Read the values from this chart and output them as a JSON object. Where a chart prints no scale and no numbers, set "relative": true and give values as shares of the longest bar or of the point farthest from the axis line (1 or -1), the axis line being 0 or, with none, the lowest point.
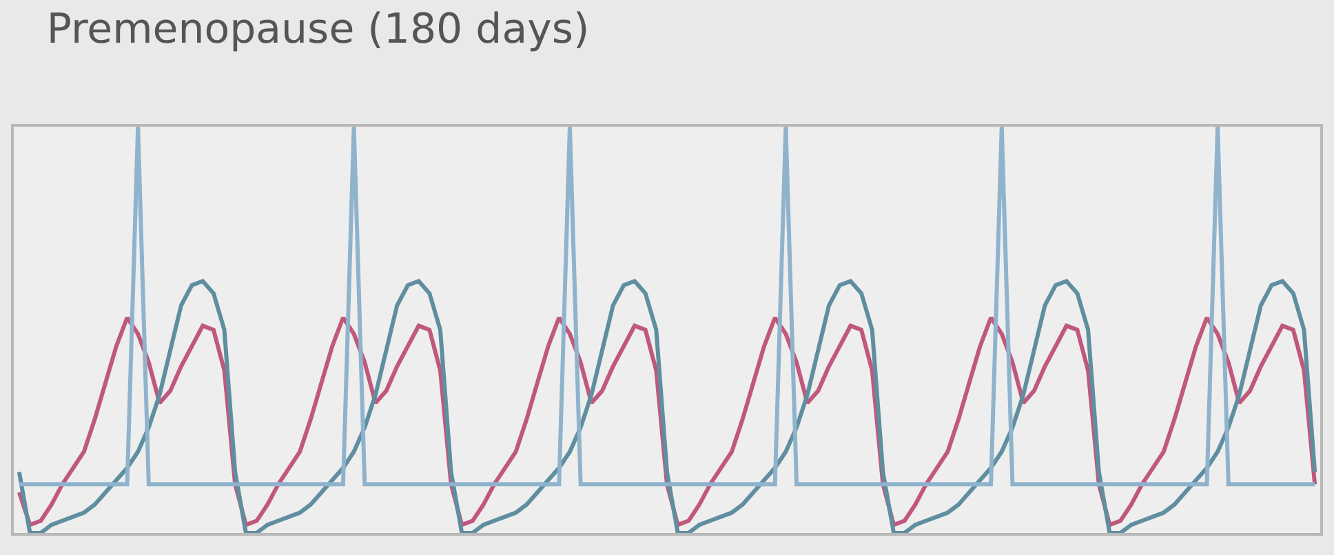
{
  "chart_data": {
    "type": "line",
    "title": "Premenopause (180 days)",
    "relative": true,
    "grid": false,
    "marker": "none",
    "line_style": "solid",
    "categories": [
      null,
      null,
      null,
      null,
      null,
      null,
      null,
      null,
      null,
      null,
      null,
      null,
      null,
      null,
      null,
      null,
      null,
      null,
      null,
      null,
      null,
      null,
      null,
      null,
      null,
      null,
      null,
      null,
      null,
      null,
      null,
      null,
      null,
      null,
      null,
      null,
      null,
      null,
      null,
      null,
      null,
      null,
      null,
      null,
      null,
      null,
      null,
      null,
      null,
      null,
      null,
      null,
      null,
      null,
      null,
      null,
      null,
      null,
      null,
      null,
      null,
      null,
      null,
      null,
      null,
      null,
      null,
      null,
      null,
      null,
      null,
      null,
      null,
      null,
      null,
      null,
      null,
      null,
      null,
      null,
      null,
      null,
      null,
      null,
      null,
      null,
      null,
      null,
      null,
      null,
      null,
      null,
      null,
      null,
      null,
      null,
      null,
      null,
      null,
      null,
      null,
      null,
      null,
      null,
      null,
      null,
      null,
      null,
      null,
      null,
      null,
      null,
      null,
      null,
      null,
      null,
      null,
      null,
      null,
      null,
      null
    ],
    "series": [
      {
        "color": "#c0587e",
        "values": [
          0.1,
          0.02,
          0.03,
          0.07,
          0.12,
          0.16,
          0.2,
          0.28,
          0.37,
          0.46,
          0.53,
          0.49,
          0.42,
          0.32,
          0.35,
          0.41,
          0.46,
          0.51,
          0.5,
          0.4,
          0.12,
          0.02,
          0.03,
          0.07,
          0.12,
          0.16,
          0.2,
          0.28,
          0.37,
          0.46,
          0.53,
          0.49,
          0.42,
          0.32,
          0.35,
          0.41,
          0.46,
          0.51,
          0.5,
          0.4,
          0.12,
          0.02,
          0.03,
          0.07,
          0.12,
          0.16,
          0.2,
          0.28,
          0.37,
          0.46,
          0.53,
          0.49,
          0.42,
          0.32,
          0.35,
          0.41,
          0.46,
          0.51,
          0.5,
          0.4,
          0.12,
          0.02,
          0.03,
          0.07,
          0.12,
          0.16,
          0.2,
          0.28,
          0.37,
          0.46,
          0.53,
          0.49,
          0.42,
          0.32,
          0.35,
          0.41,
          0.46,
          0.51,
          0.5,
          0.4,
          0.12,
          0.02,
          0.03,
          0.07,
          0.12,
          0.16,
          0.2,
          0.28,
          0.37,
          0.46,
          0.53,
          0.49,
          0.42,
          0.32,
          0.35,
          0.41,
          0.46,
          0.51,
          0.5,
          0.4,
          0.12,
          0.02,
          0.03,
          0.07,
          0.12,
          0.16,
          0.2,
          0.28,
          0.37,
          0.46,
          0.53,
          0.49,
          0.42,
          0.32,
          0.35,
          0.41,
          0.46,
          0.51,
          0.5,
          0.4,
          0.12
        ]
      },
      {
        "color": "#5f8ea0",
        "values": [
          0.15,
          0,
          0,
          0.02,
          0.03,
          0.04,
          0.05,
          0.07,
          0.1,
          0.13,
          0.16,
          0.2,
          0.26,
          0.34,
          0.45,
          0.56,
          0.61,
          0.62,
          0.59,
          0.5,
          0.15,
          0,
          0,
          0.02,
          0.03,
          0.04,
          0.05,
          0.07,
          0.1,
          0.13,
          0.16,
          0.2,
          0.26,
          0.34,
          0.45,
          0.56,
          0.61,
          0.62,
          0.59,
          0.5,
          0.15,
          0,
          0,
          0.02,
          0.03,
          0.04,
          0.05,
          0.07,
          0.1,
          0.13,
          0.16,
          0.2,
          0.26,
          0.34,
          0.45,
          0.56,
          0.61,
          0.62,
          0.59,
          0.5,
          0.15,
          0,
          0,
          0.02,
          0.03,
          0.04,
          0.05,
          0.07,
          0.1,
          0.13,
          0.16,
          0.2,
          0.26,
          0.34,
          0.45,
          0.56,
          0.61,
          0.62,
          0.59,
          0.5,
          0.15,
          0,
          0,
          0.02,
          0.03,
          0.04,
          0.05,
          0.07,
          0.1,
          0.13,
          0.16,
          0.2,
          0.26,
          0.34,
          0.45,
          0.56,
          0.61,
          0.62,
          0.59,
          0.5,
          0.15,
          0,
          0,
          0.02,
          0.03,
          0.04,
          0.05,
          0.07,
          0.1,
          0.13,
          0.16,
          0.2,
          0.26,
          0.34,
          0.45,
          0.56,
          0.61,
          0.62,
          0.59,
          0.5,
          0.15
        ]
      },
      {
        "color": "#8fb3cc",
        "values": [
          0.12,
          0.12,
          0.12,
          0.12,
          0.12,
          0.12,
          0.12,
          0.12,
          0.12,
          0.12,
          0.12,
          1,
          0.12,
          0.12,
          0.12,
          0.12,
          0.12,
          0.12,
          0.12,
          0.12,
          0.12,
          0.12,
          0.12,
          0.12,
          0.12,
          0.12,
          0.12,
          0.12,
          0.12,
          0.12,
          0.12,
          1,
          0.12,
          0.12,
          0.12,
          0.12,
          0.12,
          0.12,
          0.12,
          0.12,
          0.12,
          0.12,
          0.12,
          0.12,
          0.12,
          0.12,
          0.12,
          0.12,
          0.12,
          0.12,
          0.12,
          1,
          0.12,
          0.12,
          0.12,
          0.12,
          0.12,
          0.12,
          0.12,
          0.12,
          0.12,
          0.12,
          0.12,
          0.12,
          0.12,
          0.12,
          0.12,
          0.12,
          0.12,
          0.12,
          0.12,
          1,
          0.12,
          0.12,
          0.12,
          0.12,
          0.12,
          0.12,
          0.12,
          0.12,
          0.12,
          0.12,
          0.12,
          0.12,
          0.12,
          0.12,
          0.12,
          0.12,
          0.12,
          0.12,
          0.12,
          1,
          0.12,
          0.12,
          0.12,
          0.12,
          0.12,
          0.12,
          0.12,
          0.12,
          0.12,
          0.12,
          0.12,
          0.12,
          0.12,
          0.12,
          0.12,
          0.12,
          0.12,
          0.12,
          0.12,
          1,
          0.12,
          0.12,
          0.12,
          0.12,
          0.12,
          0.12,
          0.12,
          0.12,
          0.12
        ]
      }
    ]
  }
}
